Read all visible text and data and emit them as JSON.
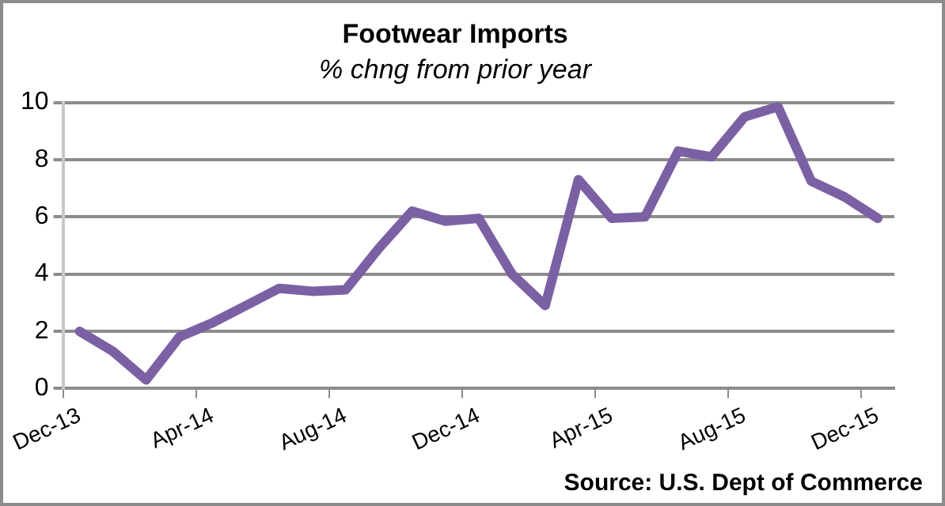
{
  "chart_data": {
    "type": "line",
    "title": "Footwear Imports",
    "subtitle": "% chng from prior year",
    "categories": [
      "Dec-13",
      null,
      null,
      null,
      "Apr-14",
      null,
      null,
      null,
      "Aug-14",
      null,
      null,
      null,
      "Dec-14",
      null,
      null,
      null,
      "Apr-15",
      null,
      null,
      null,
      "Aug-15",
      null,
      null,
      null,
      "Dec-15"
    ],
    "series": [
      {
        "color": "#7b61a3",
        "values": [
          2.0,
          1.3,
          0.3,
          1.8,
          2.3,
          2.9,
          3.5,
          3.4,
          3.45,
          4.9,
          6.2,
          5.85,
          5.95,
          4.0,
          2.9,
          7.3,
          5.95,
          6.0,
          8.3,
          8.1,
          9.5,
          9.85,
          7.25,
          6.7,
          5.95
        ]
      }
    ],
    "ylim": [
      0,
      10
    ],
    "yticks": [
      0,
      2,
      4,
      6,
      8,
      10
    ],
    "grid": "y",
    "legend": false,
    "marker": "none",
    "line_style": "solid",
    "annotations": [
      "Source: U.S. Dept of Commerce"
    ]
  }
}
